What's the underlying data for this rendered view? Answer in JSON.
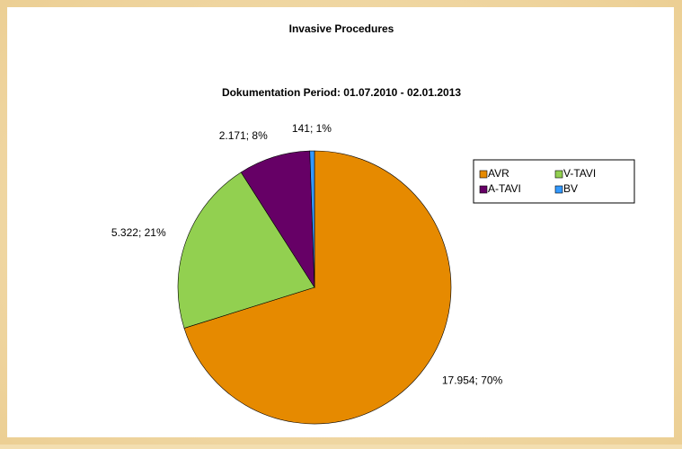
{
  "chart_data": {
    "type": "pie",
    "title": "Invasive Procedures",
    "subtitle": "Dokumentation Period: 01.07.2010 - 02.01.2013",
    "categories": [
      "AVR",
      "V-TAVI",
      "A-TAVI",
      "BV"
    ],
    "values": [
      17954,
      5322,
      2171,
      141
    ],
    "value_labels": [
      "17.954; 70%",
      "5.322; 21%",
      "2.171; 8%",
      "141; 1%"
    ],
    "colors": [
      "#e68a00",
      "#92d050",
      "#660066",
      "#3399ff"
    ],
    "legend": "right"
  }
}
